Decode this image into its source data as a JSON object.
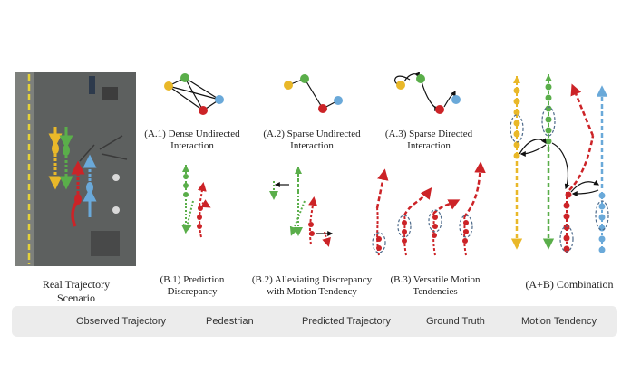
{
  "captions": {
    "real": "Real Trajectory Scenario",
    "a1": "(A.1) Dense Undirected Interaction",
    "a2": "(A.2) Sparse Undirected Interaction",
    "a3": "(A.3) Sparse Directed Interaction",
    "b1": "(B.1) Prediction Discrepancy",
    "b2": "(B.2) Alleviating Discrepancy with Motion Tendency",
    "b3": "(B.3) Versatile Motion Tendencies",
    "combo": "(A+B) Combination"
  },
  "legend": {
    "observed": "Observed Trajectory",
    "pedestrian": "Pedestrian",
    "predicted": "Predicted Trajectory",
    "ground_truth": "Ground Truth",
    "tendency": "Motion Tendency"
  },
  "colors": {
    "yellow": "#e9b829",
    "green": "#5aae4a",
    "red": "#cc2327",
    "blue": "#6aa9d9",
    "tendency": "#4d6a8a",
    "legend_bg": "#ececec"
  }
}
